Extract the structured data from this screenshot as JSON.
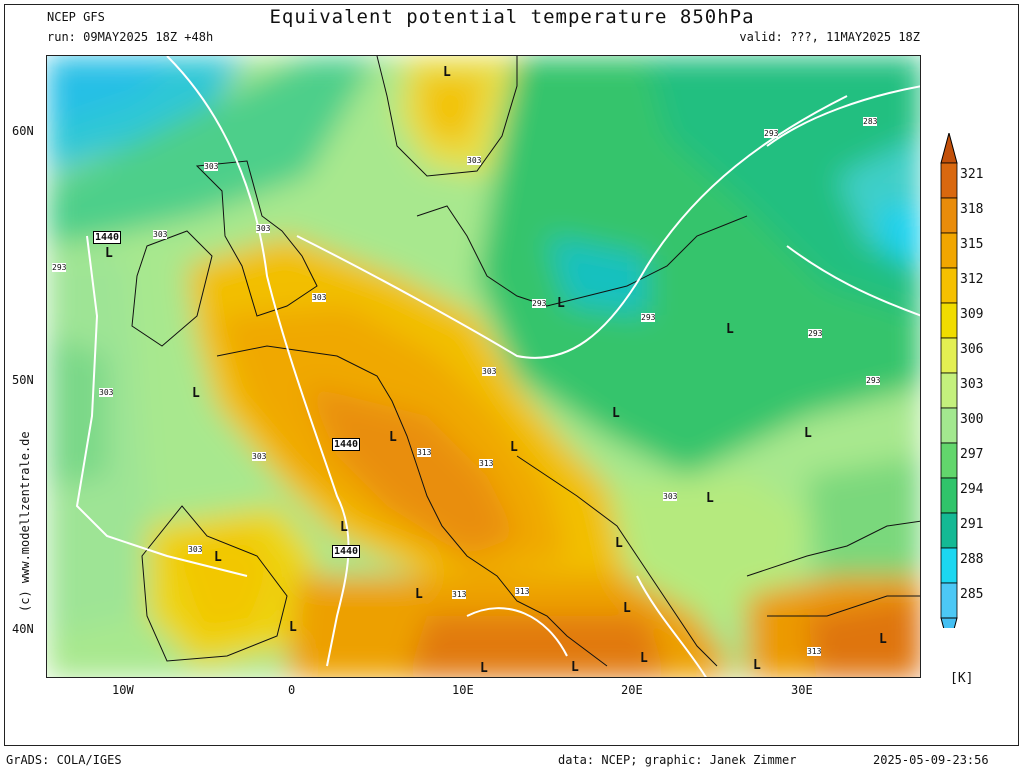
{
  "header": {
    "model": "NCEP GFS",
    "run": "run: 09MAY2025 18Z +48h",
    "title": "Equivalent potential temperature 850hPa",
    "valid": "valid: ???, 11MAY2025 18Z"
  },
  "watermark": "(c) www.modellzentrale.de",
  "colorbar": {
    "levels": [
      "321",
      "318",
      "315",
      "312",
      "309",
      "306",
      "303",
      "300",
      "297",
      "294",
      "291",
      "288",
      "285"
    ],
    "colors": [
      "#d9680f",
      "#e98c0a",
      "#f1a600",
      "#f5c000",
      "#f0dc00",
      "#e3ef52",
      "#c4f07d",
      "#a3e88f",
      "#62d66c",
      "#30c46a",
      "#14b994",
      "#1cd7f0",
      "#4cc8f5"
    ],
    "top_color": "#c2500a",
    "bottom_color": "#44bff2",
    "unit": "[K]"
  },
  "axes": {
    "lat_labels": [
      "60N",
      "50N",
      "40N"
    ],
    "lon_labels": [
      "10W",
      "0",
      "10E",
      "20E",
      "30E"
    ]
  },
  "map_labels": {
    "geopotential": [
      "1440",
      "1440",
      "1440"
    ],
    "isotherms": [
      "303",
      "303",
      "303",
      "303",
      "303",
      "303",
      "303",
      "303",
      "303",
      "303",
      "313",
      "313",
      "313",
      "313",
      "313",
      "293",
      "293",
      "293",
      "293",
      "293",
      "293",
      "283"
    ],
    "lows": [
      "L",
      "L",
      "L",
      "L",
      "L",
      "L",
      "L",
      "L",
      "L",
      "L",
      "L",
      "L",
      "L",
      "L",
      "L",
      "L",
      "L",
      "L",
      "L",
      "L",
      "L"
    ]
  },
  "footer": {
    "left": "GrADS: COLA/IGES",
    "credit": "data: NCEP; graphic: Janek Zimmer",
    "timestamp": "2025-05-09-23:56"
  }
}
